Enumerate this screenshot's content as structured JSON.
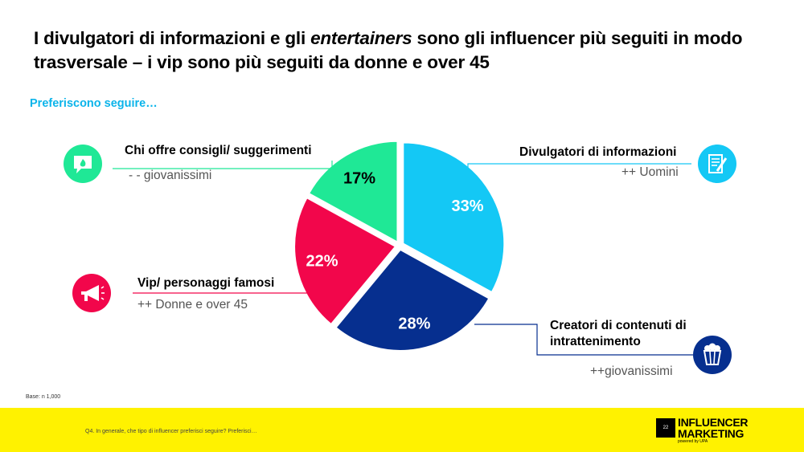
{
  "title_part1": "I divulgatori di informazioni e gli ",
  "title_em": "entertainers",
  "title_part2": " sono gli influencer più seguiti in modo trasversale – i vip sono più seguiti da donne e over 45",
  "subtitle": "Preferiscono seguire…",
  "chart_data": {
    "type": "pie",
    "slices": [
      {
        "label": "Divulgatori di informazioni",
        "value": 33,
        "value_label": "33%",
        "note": "++ Uomini",
        "color": "#14c8f5",
        "icon": "form-pencil-icon"
      },
      {
        "label": "Creatori di contenuti di intrattenimento",
        "value": 28,
        "value_label": "28%",
        "note": "++giovanissimi",
        "color": "#062f8f",
        "icon": "popcorn-icon"
      },
      {
        "label": "Vip/ personaggi famosi",
        "value": 22,
        "value_label": "22%",
        "note": "++ Donne e over 45",
        "color": "#f2064b",
        "icon": "megaphone-icon"
      },
      {
        "label": "Chi offre consigli/ suggerimenti",
        "value": 17,
        "value_label": "17%",
        "note": "- - giovanissimi",
        "color": "#1fe896",
        "icon": "chat-bubble-icon"
      }
    ]
  },
  "labels": {
    "divulgatori": "Divulgatori di informazioni",
    "creatori_line1": "Creatori di contenuti di",
    "creatori_line2": "intrattenimento",
    "vip": "Vip/ personaggi famosi",
    "consigli": "Chi offre consigli/ suggerimenti"
  },
  "notes": {
    "divulgatori": "++ Uomini",
    "creatori": "++giovanissimi",
    "vip": "++ Donne e over 45",
    "consigli": "- - giovanissimi"
  },
  "base": "Base: n 1,000",
  "question": "Q4. In generale, che tipo di influencer preferisci seguire? Preferisci…",
  "page_number": "22",
  "brand_line1": "INFLUENCER",
  "brand_line2": "MARKETING",
  "brand_powered": "powered by UPA",
  "colors": {
    "accent": "#0bb4ea",
    "footer": "#fff200"
  }
}
